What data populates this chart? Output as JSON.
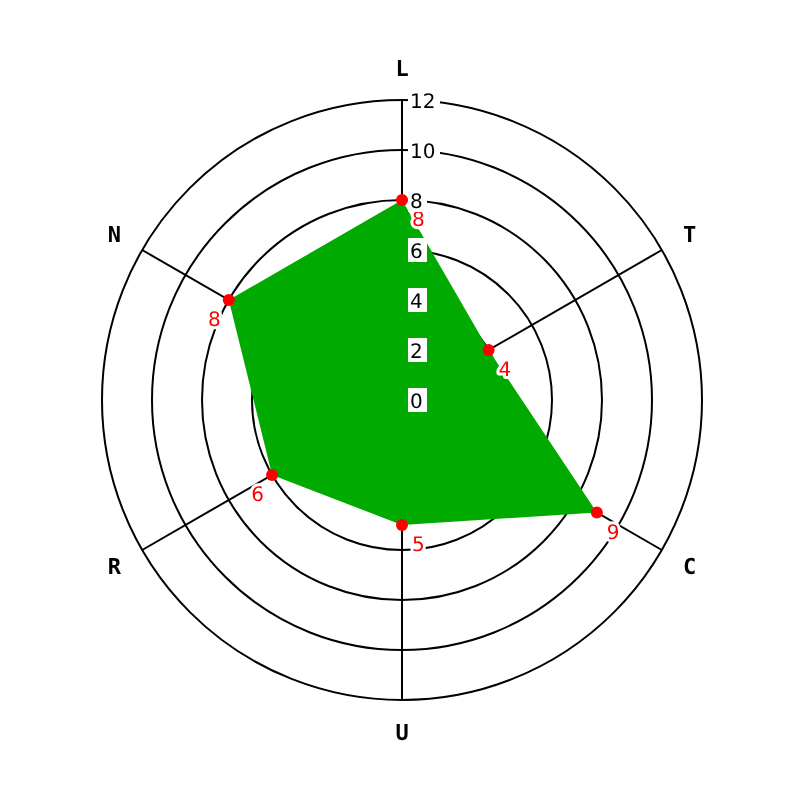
{
  "chart_data": {
    "type": "radar",
    "categories": [
      "L",
      "T",
      "C",
      "U",
      "R",
      "N"
    ],
    "series": [
      {
        "color": "#00aa00",
        "values": [
          8,
          4,
          9,
          5,
          6,
          8
        ]
      }
    ],
    "ylim": [
      0,
      12
    ],
    "yticks": [
      0,
      2,
      4,
      6,
      8,
      10,
      12
    ],
    "data_labels": true,
    "marker": "circle",
    "grid": true
  }
}
